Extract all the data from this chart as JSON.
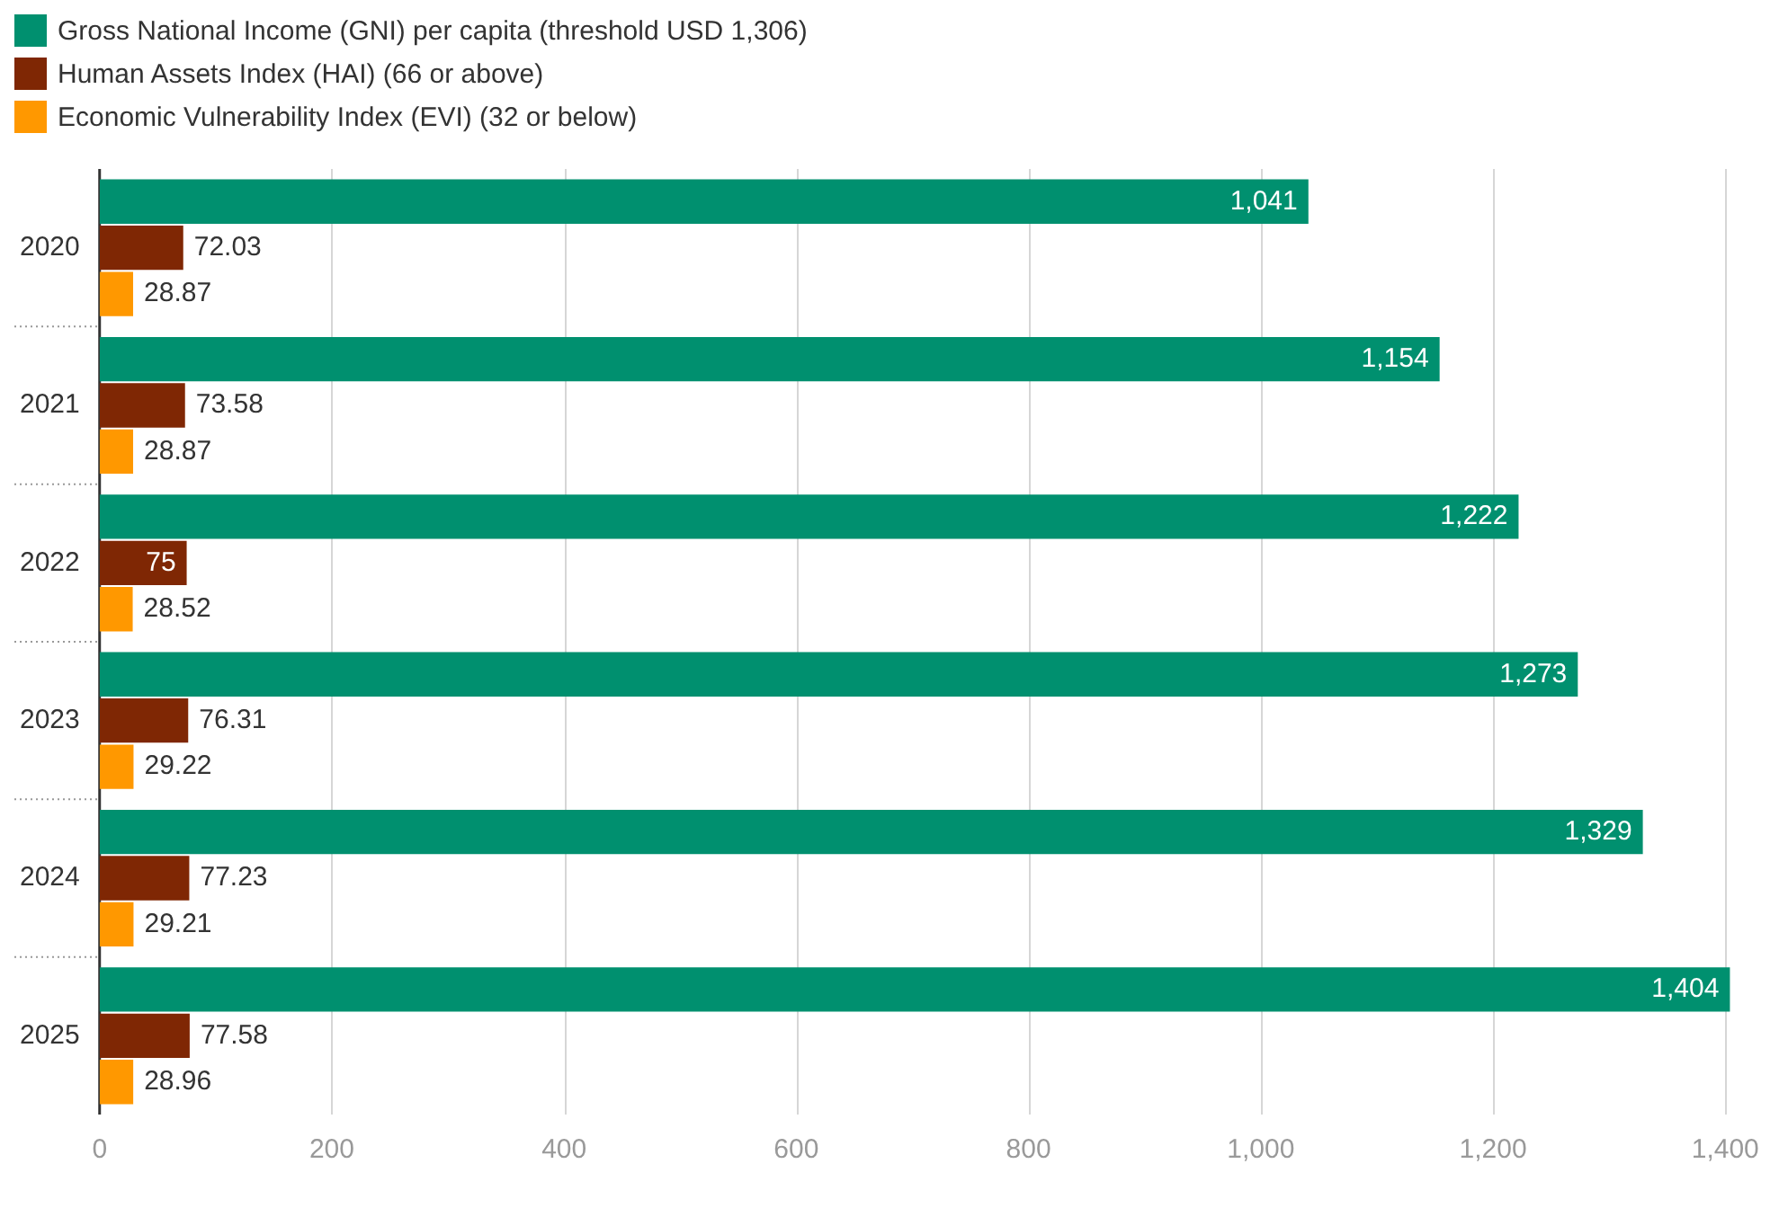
{
  "chart_data": {
    "type": "bar",
    "orientation": "horizontal",
    "categories": [
      "2020",
      "2021",
      "2022",
      "2023",
      "2024",
      "2025"
    ],
    "series": [
      {
        "name": "Gross National Income (GNI) per capita (threshold USD 1,306)",
        "color": "#00906f",
        "values": [
          1041,
          1154,
          1222,
          1273,
          1329,
          1404
        ],
        "value_labels": [
          "1,041",
          "1,154",
          "1,222",
          "1,273",
          "1,329",
          "1,404"
        ]
      },
      {
        "name": "Human Assets Index (HAI) (66 or above)",
        "color": "#7f2704",
        "values": [
          72.03,
          73.58,
          75,
          76.31,
          77.23,
          77.58
        ],
        "value_labels": [
          "72.03",
          "73.58",
          "75",
          "76.31",
          "77.23",
          "77.58"
        ]
      },
      {
        "name": "Economic Vulnerability Index (EVI) (32 or below)",
        "color": "#ff9800",
        "values": [
          28.87,
          28.87,
          28.52,
          29.22,
          29.21,
          28.96
        ],
        "value_labels": [
          "28.87",
          "28.87",
          "28.52",
          "29.22",
          "29.21",
          "28.96"
        ]
      }
    ],
    "xlim": [
      0,
      1410
    ],
    "xticks": [
      0,
      200,
      400,
      600,
      800,
      {
        "value": 1000,
        "label": "1,000"
      },
      {
        "value": 1200,
        "label": "1,200"
      },
      {
        "value": 1400,
        "label": "1,400"
      }
    ],
    "grid": "x",
    "legend": "top left"
  }
}
